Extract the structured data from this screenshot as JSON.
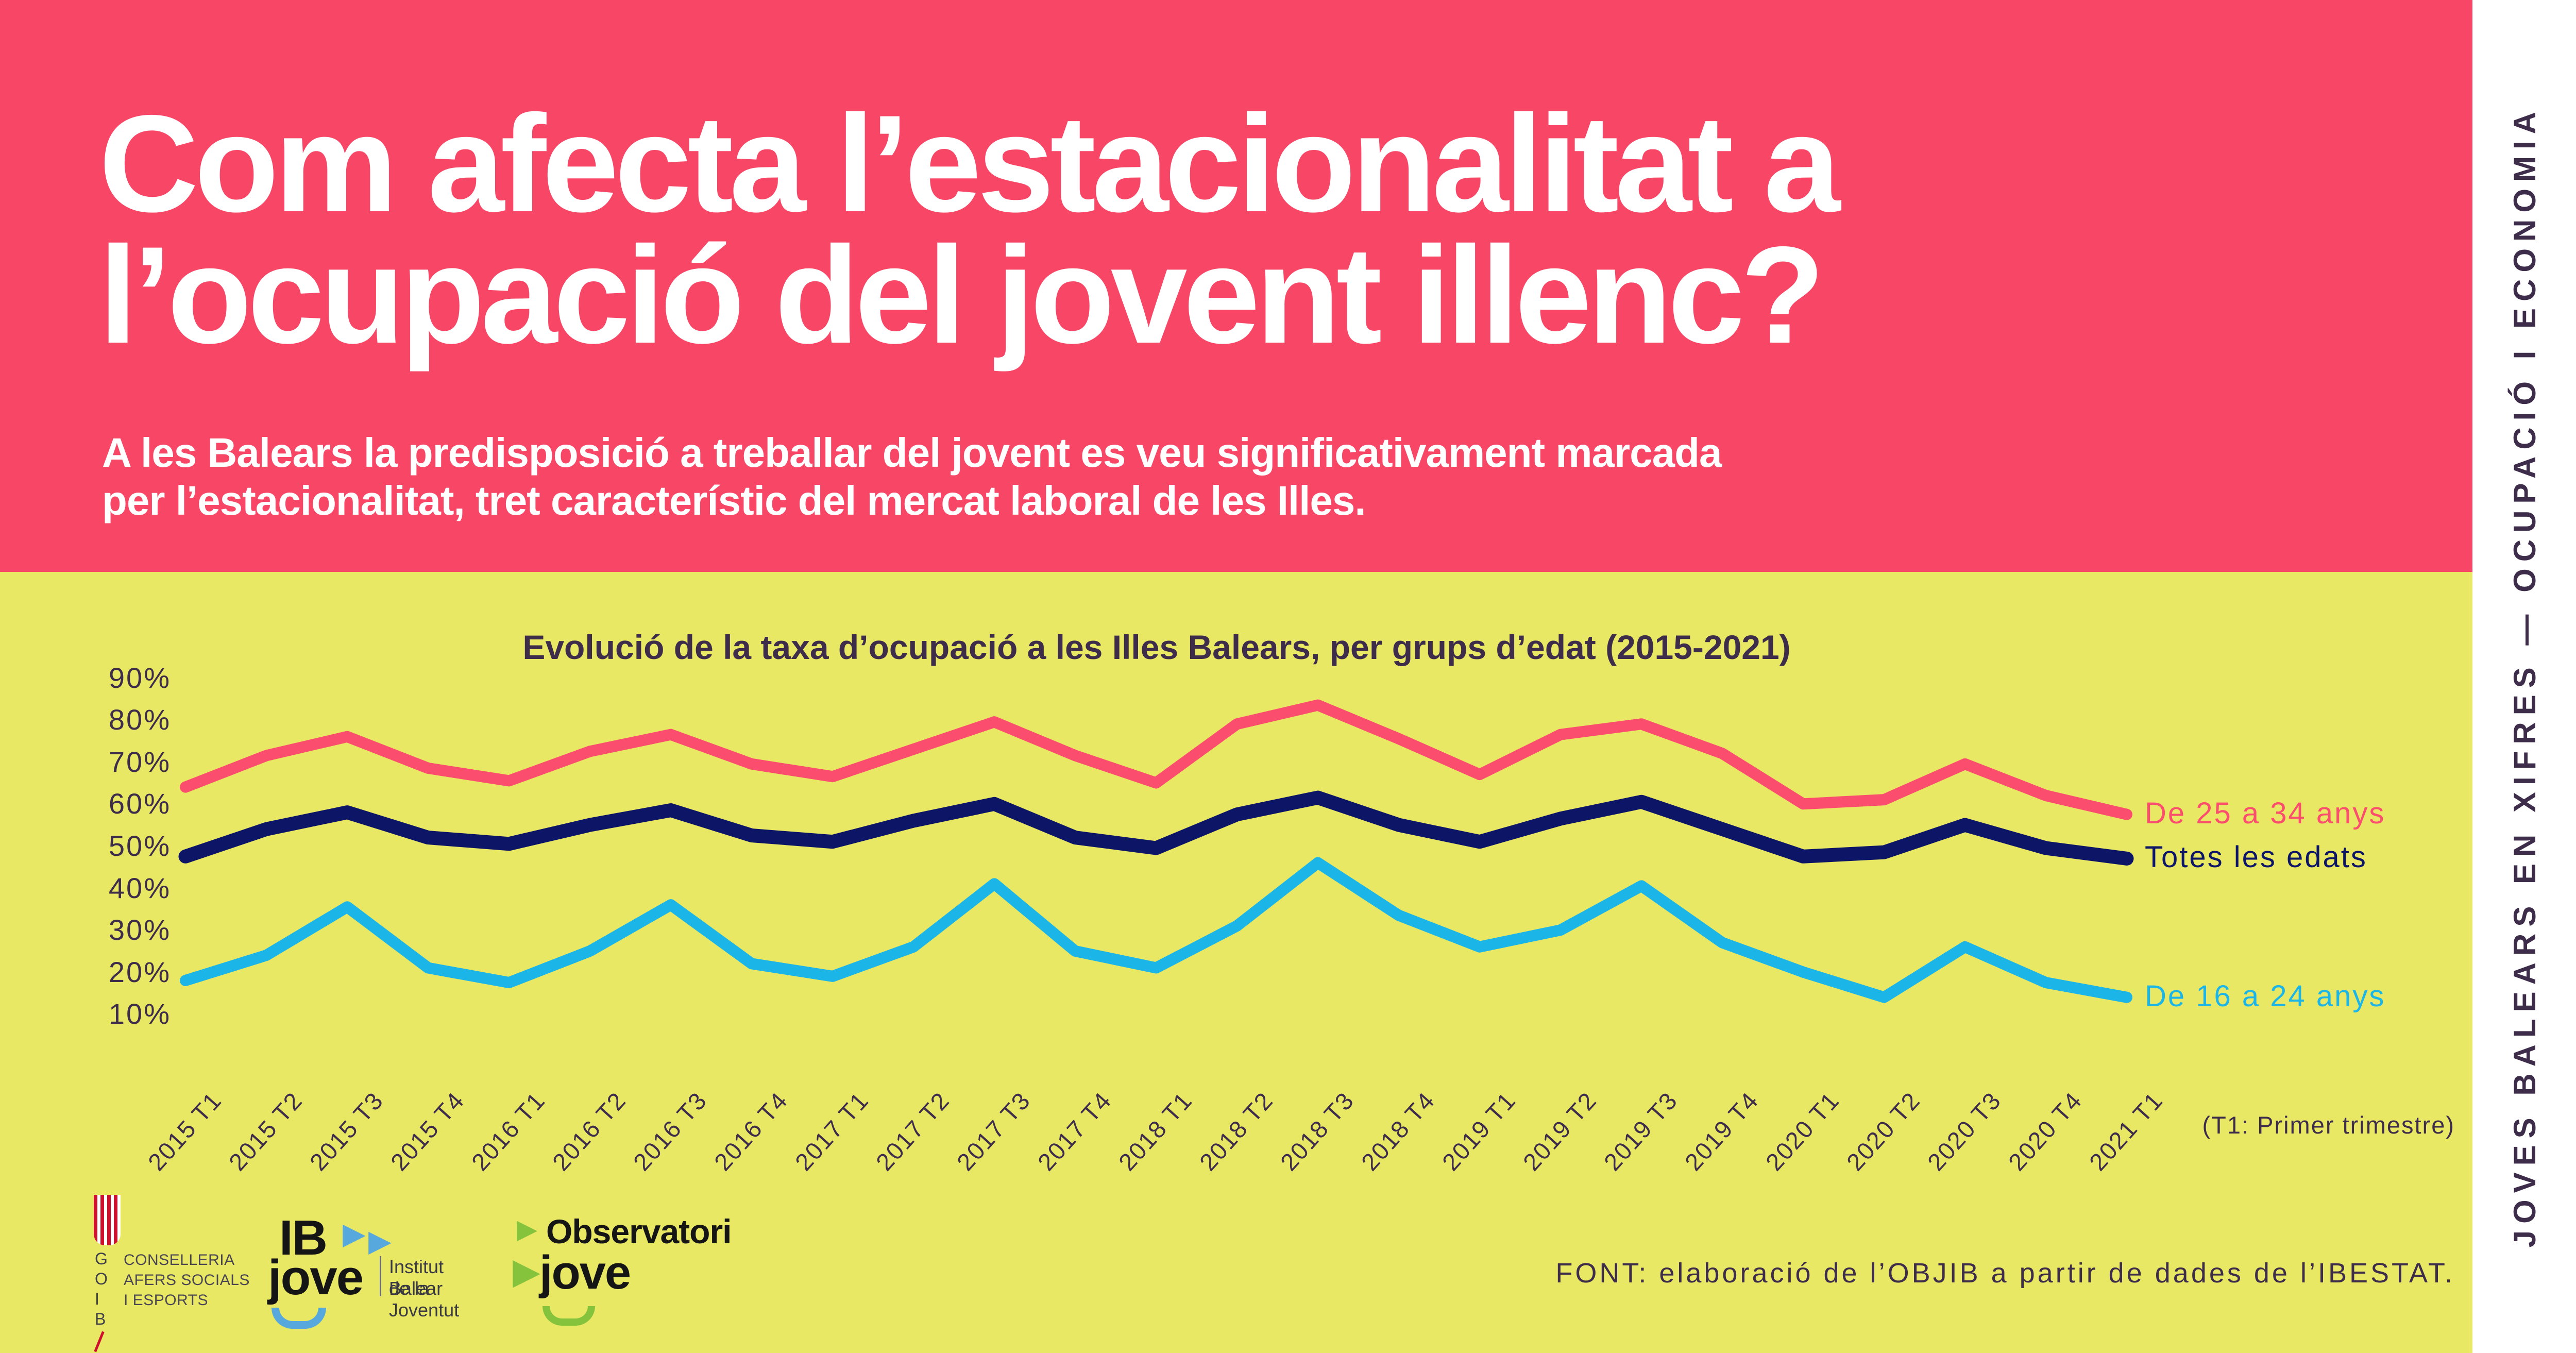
{
  "header": {
    "title_line1": "Com afecta l’estacionalitat a",
    "title_line2": "l’ocupació del jovent illenc?",
    "subtitle_line1": "A les Balears la predisposició a treballar del jovent es veu significativament marcada",
    "subtitle_line2": "per l’estacionalitat, tret característic del mercat laboral de les Illes."
  },
  "sidebar": {
    "vertical_text": "JOVES BALEARS EN XIFRES — OCUPACIÓ I ECONOMIA"
  },
  "chart_data": {
    "type": "line",
    "title": "Evolució de la taxa d’ocupació a les Illes Balears, per grups d’edat (2015-2021)",
    "x": [
      "2015 T1",
      "2015 T2",
      "2015 T3",
      "2015 T4",
      "2016 T1",
      "2016 T2",
      "2016 T3",
      "2016 T4",
      "2017 T1",
      "2017 T2",
      "2017 T3",
      "2017 T4",
      "2018 T1",
      "2018 T2",
      "2018 T3",
      "2018 T4",
      "2019 T1",
      "2019 T2",
      "2019 T3",
      "2019 T4",
      "2020 T1",
      "2020 T2",
      "2020 T3",
      "2020 T4",
      "2021 T1"
    ],
    "y_axis": {
      "labels": [
        "90%",
        "80%",
        "70%",
        "60%",
        "50%",
        "40%",
        "30%",
        "20%",
        "10%"
      ],
      "ticks": [
        90,
        80,
        70,
        60,
        50,
        40,
        30,
        20,
        10
      ],
      "unit": "%",
      "grid": false
    },
    "series": [
      {
        "name": "De 25 a 34 anys",
        "color": "#fb4d6d",
        "values": [
          64,
          71.5,
          76,
          68.5,
          65.5,
          72.5,
          76.5,
          69.5,
          66.5,
          73,
          79.5,
          71.5,
          65,
          79,
          83.5,
          75.5,
          67,
          76.5,
          79,
          72,
          60,
          61,
          69.5,
          62,
          57.5
        ]
      },
      {
        "name": "Totes les edats",
        "color": "#0d1566",
        "values": [
          47.5,
          54,
          58,
          52,
          50.5,
          55,
          58.5,
          52.5,
          51,
          56,
          60,
          52,
          49.5,
          57.5,
          61.5,
          55,
          51,
          56.5,
          60.5,
          54,
          47.5,
          48.5,
          55,
          49.5,
          47
        ]
      },
      {
        "name": "De 16 a 24 anys",
        "color": "#1cb5e8",
        "values": [
          18,
          24,
          35.5,
          21,
          17.5,
          25,
          36,
          22,
          19,
          26,
          41,
          25,
          21,
          31,
          46,
          33.5,
          26,
          30,
          40.5,
          27,
          20,
          14,
          26,
          17.5,
          14
        ]
      }
    ],
    "legend_position": "right",
    "note": "(T1: Primer trimestre)"
  },
  "footer": {
    "source": "FONT: elaboració de l’OBJIB a partir de dades de l’IBESTAT.",
    "goib": {
      "letters": [
        "G",
        "O",
        "I",
        "B"
      ],
      "dept_line1": "CONSELLERIA",
      "dept_line2": "AFERS SOCIALS",
      "dept_line3": "I ESPORTS"
    },
    "ibjove": {
      "name_top": "IB",
      "name_bottom": "jove",
      "arrow_icon": "▶",
      "claim_line1": "Institut Balear",
      "claim_line2": "de la Joventut"
    },
    "obsjove": {
      "name_top": "Observatori",
      "name_bottom": "jove",
      "arrow_icon": "▶"
    }
  },
  "colors": {
    "header_bg": "#f84666",
    "chart_bg": "#e9e864",
    "strip_bg": "#ffffff",
    "text_dark": "#3e2c4b",
    "series_25_34": "#fb4d6d",
    "series_all": "#0d1566",
    "series_16_24": "#1cb5e8",
    "goib_red": "#cf0f2e",
    "ibjove_blue": "#57a8dc",
    "obsjove_green": "#86c33d"
  }
}
